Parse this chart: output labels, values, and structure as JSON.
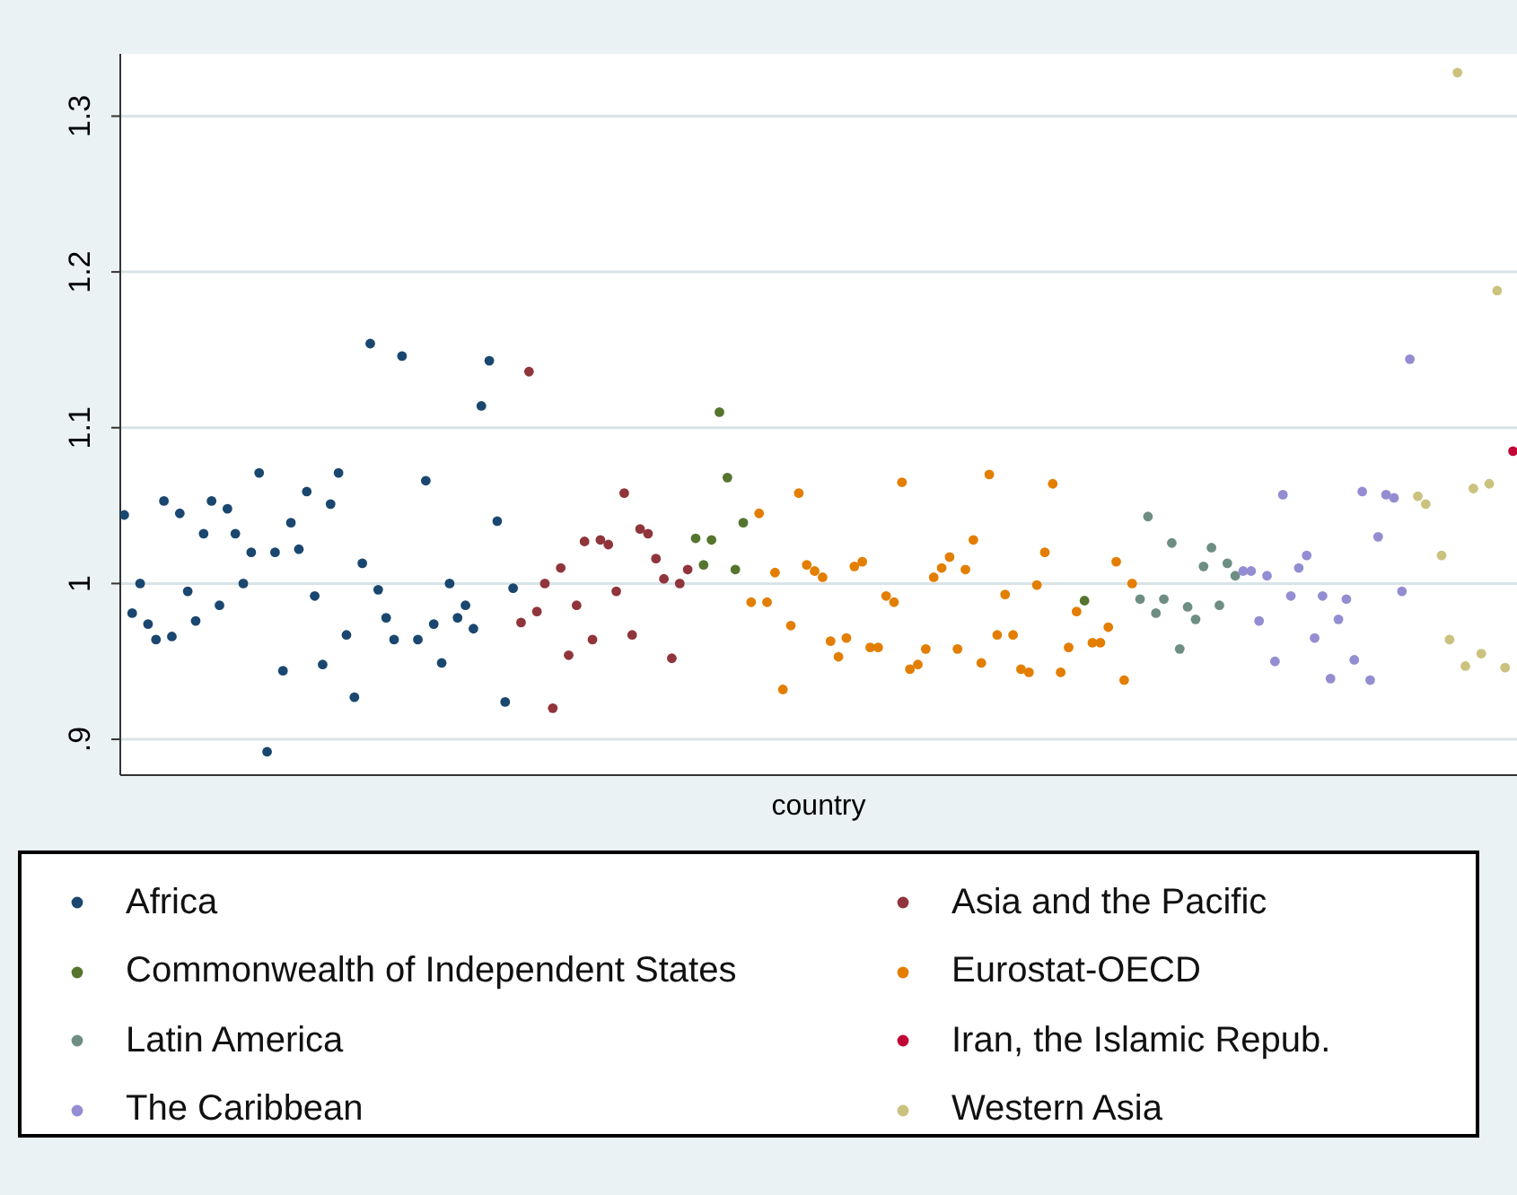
{
  "chart_data": {
    "type": "scatter",
    "xlabel": "country",
    "ylim": [
      0.877,
      1.34
    ],
    "yticks": [
      {
        "value": 0.9,
        "label": ".9"
      },
      1,
      1.1,
      1.2,
      1.3
    ],
    "grid": "y",
    "legend": "bottom",
    "marker": "circle",
    "categories": [
      null,
      null,
      null,
      null,
      null,
      null,
      null,
      null,
      null,
      null,
      null,
      null,
      null,
      null,
      null,
      null,
      null,
      null,
      null,
      null,
      null,
      null,
      null,
      null,
      null,
      null,
      null,
      null,
      null,
      null,
      null,
      null,
      null,
      null,
      null,
      null,
      null,
      null,
      null,
      null,
      null,
      null,
      null,
      null,
      null,
      null,
      null,
      null,
      null,
      null,
      null,
      null,
      null,
      null,
      null,
      null,
      null,
      null,
      null,
      null,
      null,
      null,
      null,
      null,
      null,
      null,
      null,
      null,
      null,
      null,
      null,
      null,
      null,
      null,
      null,
      null,
      null,
      null,
      null,
      null,
      null,
      null,
      null,
      null,
      null,
      null,
      null,
      null,
      null,
      null,
      null,
      null,
      null,
      null,
      null,
      null,
      null,
      null,
      null,
      null,
      null,
      null,
      null,
      null,
      null,
      null,
      null,
      null,
      null,
      null,
      null,
      null,
      null,
      null,
      null,
      null,
      null,
      null,
      null,
      null,
      null,
      null,
      null,
      null,
      null,
      null,
      null,
      null,
      null,
      null,
      null,
      null,
      null,
      null,
      null,
      null,
      null,
      null,
      null,
      null,
      null,
      null,
      null,
      null,
      null,
      null,
      null,
      null,
      null,
      null,
      null,
      null,
      null,
      null,
      null,
      null,
      null,
      null,
      null,
      null,
      null,
      null,
      null,
      null,
      null,
      null,
      null,
      null,
      null,
      null,
      null,
      null,
      null,
      null,
      null,
      null
    ],
    "series": [
      {
        "name": "Africa",
        "color": "#1a476f",
        "values": [
          1.044,
          0.981,
          1.0,
          0.974,
          0.964,
          1.053,
          0.966,
          1.045,
          0.995,
          0.976,
          1.032,
          1.053,
          0.986,
          1.048,
          1.032,
          1.0,
          1.02,
          1.071,
          0.892,
          1.02,
          0.944,
          1.039,
          1.022,
          1.059,
          0.992,
          0.948,
          1.051,
          1.071,
          0.967,
          0.927,
          1.013,
          1.154,
          0.996,
          0.978,
          0.964,
          1.146,
          null,
          0.964,
          1.066,
          0.974,
          0.949,
          1.0,
          0.978,
          0.986,
          0.971,
          1.114,
          1.143,
          1.04,
          0.924,
          0.997,
          null,
          null,
          null,
          null,
          null,
          null,
          null,
          null,
          null,
          null,
          null,
          null,
          null,
          null,
          null,
          null,
          null,
          null,
          null,
          null,
          null,
          null,
          null,
          null,
          null,
          null,
          null,
          null,
          null,
          null,
          null,
          null,
          null,
          null,
          null,
          null,
          null,
          null,
          null,
          null,
          null,
          null,
          null,
          null,
          null,
          null,
          null,
          null,
          null,
          null,
          null,
          null,
          null,
          null,
          null,
          null,
          null,
          null,
          null,
          null,
          null,
          null,
          null,
          null,
          null,
          null,
          null,
          null,
          null,
          null,
          null,
          null,
          null,
          null,
          null,
          null,
          null,
          null,
          null,
          null,
          null,
          null,
          null,
          null,
          null,
          null,
          null,
          null,
          null,
          null,
          null,
          null,
          null,
          null,
          null,
          null,
          null,
          null,
          null,
          null,
          null,
          null,
          null,
          null,
          null,
          null,
          null,
          null,
          null,
          null,
          null,
          null,
          null,
          null,
          null,
          null,
          null,
          null,
          null,
          null,
          null,
          null,
          null,
          null,
          null,
          null
        ]
      },
      {
        "name": "Asia and the Pacific",
        "color": "#90353b",
        "values": [
          null,
          null,
          null,
          null,
          null,
          null,
          null,
          null,
          null,
          null,
          null,
          null,
          null,
          null,
          null,
          null,
          null,
          null,
          null,
          null,
          null,
          null,
          null,
          null,
          null,
          null,
          null,
          null,
          null,
          null,
          null,
          null,
          null,
          null,
          null,
          null,
          null,
          null,
          null,
          null,
          null,
          null,
          null,
          null,
          null,
          null,
          null,
          null,
          null,
          null,
          0.975,
          1.136,
          0.982,
          1.0,
          0.92,
          1.01,
          0.954,
          0.986,
          1.027,
          0.964,
          1.028,
          1.025,
          0.995,
          1.058,
          0.967,
          1.035,
          1.032,
          1.016,
          1.003,
          0.952,
          1.0,
          1.009,
          null,
          null,
          null,
          null,
          null,
          null,
          null,
          null,
          null,
          null,
          null,
          null,
          null,
          null,
          null,
          null,
          null,
          null,
          null,
          null,
          null,
          null,
          null,
          null,
          null,
          null,
          null,
          null,
          null,
          null,
          null,
          null,
          null,
          null,
          null,
          null,
          null,
          null,
          null,
          null,
          null,
          null,
          null,
          null,
          null,
          null,
          null,
          null,
          null,
          null,
          null,
          null,
          null,
          null,
          null,
          null,
          null,
          null,
          null,
          null,
          null,
          null,
          null,
          null,
          null,
          null,
          null,
          null,
          null,
          null,
          null,
          null,
          null,
          null,
          null,
          null,
          null,
          null,
          null,
          null,
          null,
          null,
          null,
          null,
          null,
          null,
          null,
          null,
          null,
          null,
          null,
          null,
          null,
          null,
          null,
          null,
          null,
          null,
          null,
          null,
          null,
          null,
          null,
          null
        ]
      },
      {
        "name": "Commonwealth of Independent States",
        "color": "#55752f",
        "values": [
          null,
          null,
          null,
          null,
          null,
          null,
          null,
          null,
          null,
          null,
          null,
          null,
          null,
          null,
          null,
          null,
          null,
          null,
          null,
          null,
          null,
          null,
          null,
          null,
          null,
          null,
          null,
          null,
          null,
          null,
          null,
          null,
          null,
          null,
          null,
          null,
          null,
          null,
          null,
          null,
          null,
          null,
          null,
          null,
          null,
          null,
          null,
          null,
          null,
          null,
          null,
          null,
          null,
          null,
          null,
          null,
          null,
          null,
          null,
          null,
          null,
          null,
          null,
          null,
          null,
          null,
          null,
          null,
          null,
          null,
          null,
          null,
          1.029,
          1.012,
          1.028,
          1.11,
          1.068,
          1.009,
          1.039,
          null,
          null,
          null,
          null,
          null,
          null,
          null,
          null,
          null,
          null,
          null,
          null,
          null,
          null,
          null,
          null,
          null,
          null,
          null,
          null,
          null,
          null,
          null,
          null,
          null,
          null,
          null,
          null,
          null,
          null,
          null,
          null,
          null,
          null,
          null,
          null,
          null,
          null,
          null,
          null,
          null,
          null,
          0.989,
          null,
          null,
          null,
          null,
          null,
          null,
          null,
          null,
          null,
          null,
          null,
          null,
          null,
          null,
          null,
          null,
          null,
          null,
          null,
          null,
          null,
          null,
          null,
          null,
          null,
          null,
          null,
          null,
          null,
          null,
          null,
          null,
          null,
          null,
          null,
          null,
          null,
          null,
          null,
          null,
          null,
          null,
          null,
          null,
          null,
          null,
          null,
          null,
          null,
          null,
          null,
          null,
          null,
          null
        ]
      },
      {
        "name": "Eurostat-OECD",
        "color": "#e37e00",
        "values": [
          null,
          null,
          null,
          null,
          null,
          null,
          null,
          null,
          null,
          null,
          null,
          null,
          null,
          null,
          null,
          null,
          null,
          null,
          null,
          null,
          null,
          null,
          null,
          null,
          null,
          null,
          null,
          null,
          null,
          null,
          null,
          null,
          null,
          null,
          null,
          null,
          null,
          null,
          null,
          null,
          null,
          null,
          null,
          null,
          null,
          null,
          null,
          null,
          null,
          null,
          null,
          null,
          null,
          null,
          null,
          null,
          null,
          null,
          null,
          null,
          null,
          null,
          null,
          null,
          null,
          null,
          null,
          null,
          null,
          null,
          null,
          null,
          null,
          null,
          null,
          null,
          null,
          null,
          null,
          0.988,
          1.045,
          0.988,
          1.007,
          0.932,
          0.973,
          1.058,
          1.012,
          1.008,
          1.004,
          0.963,
          0.953,
          0.965,
          1.011,
          1.014,
          0.959,
          0.959,
          0.992,
          0.988,
          1.065,
          0.945,
          0.948,
          0.958,
          1.004,
          1.01,
          1.017,
          0.958,
          1.009,
          1.028,
          0.949,
          1.07,
          0.967,
          0.993,
          0.967,
          0.945,
          0.943,
          0.999,
          1.02,
          1.064,
          0.943,
          0.959,
          0.982,
          null,
          0.962,
          0.962,
          0.972,
          1.014,
          0.938,
          1.0,
          null,
          null,
          null,
          null,
          null,
          null,
          null,
          null,
          null,
          null,
          null,
          null,
          null,
          null,
          null,
          null,
          null,
          null,
          null,
          null,
          null,
          null,
          null,
          null,
          null,
          null,
          null,
          null,
          null,
          null,
          null,
          null,
          null,
          null,
          null,
          null,
          null,
          null,
          null,
          null,
          null,
          null,
          null,
          null,
          null,
          null,
          null,
          null
        ]
      },
      {
        "name": "Latin America",
        "color": "#6e8e84",
        "values": [
          null,
          null,
          null,
          null,
          null,
          null,
          null,
          null,
          null,
          null,
          null,
          null,
          null,
          null,
          null,
          null,
          null,
          null,
          null,
          null,
          null,
          null,
          null,
          null,
          null,
          null,
          null,
          null,
          null,
          null,
          null,
          null,
          null,
          null,
          null,
          null,
          null,
          null,
          null,
          null,
          null,
          null,
          null,
          null,
          null,
          null,
          null,
          null,
          null,
          null,
          null,
          null,
          null,
          null,
          null,
          null,
          null,
          null,
          null,
          null,
          null,
          null,
          null,
          null,
          null,
          null,
          null,
          null,
          null,
          null,
          null,
          null,
          null,
          null,
          null,
          null,
          null,
          null,
          null,
          null,
          null,
          null,
          null,
          null,
          null,
          null,
          null,
          null,
          null,
          null,
          null,
          null,
          null,
          null,
          null,
          null,
          null,
          null,
          null,
          null,
          null,
          null,
          null,
          null,
          null,
          null,
          null,
          null,
          null,
          null,
          null,
          null,
          null,
          null,
          null,
          null,
          null,
          null,
          null,
          null,
          null,
          null,
          null,
          null,
          null,
          null,
          null,
          null,
          0.99,
          1.043,
          0.981,
          0.99,
          1.026,
          0.958,
          0.985,
          0.977,
          1.011,
          1.023,
          0.986,
          1.013,
          1.005,
          null,
          null,
          null,
          null,
          null,
          null,
          null,
          null,
          null,
          null,
          null,
          null,
          null,
          null,
          null,
          null,
          null,
          null,
          null,
          null,
          null,
          null,
          null,
          null,
          null,
          null,
          null,
          null,
          null,
          null,
          null,
          null,
          null,
          null,
          null
        ]
      },
      {
        "name": "Iran, the Islamic Repub.",
        "color": "#c10534",
        "values": [
          null,
          null,
          null,
          null,
          null,
          null,
          null,
          null,
          null,
          null,
          null,
          null,
          null,
          null,
          null,
          null,
          null,
          null,
          null,
          null,
          null,
          null,
          null,
          null,
          null,
          null,
          null,
          null,
          null,
          null,
          null,
          null,
          null,
          null,
          null,
          null,
          null,
          null,
          null,
          null,
          null,
          null,
          null,
          null,
          null,
          null,
          null,
          null,
          null,
          null,
          null,
          null,
          null,
          null,
          null,
          null,
          null,
          null,
          null,
          null,
          null,
          null,
          null,
          null,
          null,
          null,
          null,
          null,
          null,
          null,
          null,
          null,
          null,
          null,
          null,
          null,
          null,
          null,
          null,
          null,
          null,
          null,
          null,
          null,
          null,
          null,
          null,
          null,
          null,
          null,
          null,
          null,
          null,
          null,
          null,
          null,
          null,
          null,
          null,
          null,
          null,
          null,
          null,
          null,
          null,
          null,
          null,
          null,
          null,
          null,
          null,
          null,
          null,
          null,
          null,
          null,
          null,
          null,
          null,
          null,
          null,
          null,
          null,
          null,
          null,
          null,
          null,
          null,
          null,
          null,
          null,
          null,
          null,
          null,
          null,
          null,
          null,
          null,
          null,
          null,
          null,
          null,
          null,
          null,
          null,
          null,
          null,
          null,
          null,
          null,
          null,
          null,
          null,
          null,
          null,
          null,
          null,
          null,
          null,
          null,
          null,
          null,
          null,
          null,
          null,
          null,
          null,
          null,
          null,
          null,
          null,
          null,
          null,
          null,
          null,
          1.085
        ]
      },
      {
        "name": "The Caribbean",
        "color": "#938dd2",
        "values": [
          null,
          null,
          null,
          null,
          null,
          null,
          null,
          null,
          null,
          null,
          null,
          null,
          null,
          null,
          null,
          null,
          null,
          null,
          null,
          null,
          null,
          null,
          null,
          null,
          null,
          null,
          null,
          null,
          null,
          null,
          null,
          null,
          null,
          null,
          null,
          null,
          null,
          null,
          null,
          null,
          null,
          null,
          null,
          null,
          null,
          null,
          null,
          null,
          null,
          null,
          null,
          null,
          null,
          null,
          null,
          null,
          null,
          null,
          null,
          null,
          null,
          null,
          null,
          null,
          null,
          null,
          null,
          null,
          null,
          null,
          null,
          null,
          null,
          null,
          null,
          null,
          null,
          null,
          null,
          null,
          null,
          null,
          null,
          null,
          null,
          null,
          null,
          null,
          null,
          null,
          null,
          null,
          null,
          null,
          null,
          null,
          null,
          null,
          null,
          null,
          null,
          null,
          null,
          null,
          null,
          null,
          null,
          null,
          null,
          null,
          null,
          null,
          null,
          null,
          null,
          null,
          null,
          null,
          null,
          null,
          null,
          null,
          null,
          null,
          null,
          null,
          null,
          null,
          null,
          null,
          null,
          null,
          null,
          null,
          null,
          null,
          null,
          null,
          null,
          null,
          null,
          1.008,
          1.008,
          0.976,
          1.005,
          0.95,
          1.057,
          0.992,
          1.01,
          1.018,
          0.965,
          0.992,
          0.939,
          0.977,
          0.99,
          0.951,
          1.059,
          0.938,
          1.03,
          1.057,
          1.055,
          0.995,
          1.144,
          null,
          null,
          null,
          null,
          null,
          null,
          null,
          null,
          null,
          null,
          null,
          null,
          null
        ]
      },
      {
        "name": "Western Asia",
        "color": "#cac27e",
        "values": [
          null,
          null,
          null,
          null,
          null,
          null,
          null,
          null,
          null,
          null,
          null,
          null,
          null,
          null,
          null,
          null,
          null,
          null,
          null,
          null,
          null,
          null,
          null,
          null,
          null,
          null,
          null,
          null,
          null,
          null,
          null,
          null,
          null,
          null,
          null,
          null,
          null,
          null,
          null,
          null,
          null,
          null,
          null,
          null,
          null,
          null,
          null,
          null,
          null,
          null,
          null,
          null,
          null,
          null,
          null,
          null,
          null,
          null,
          null,
          null,
          null,
          null,
          null,
          null,
          null,
          null,
          null,
          null,
          null,
          null,
          null,
          null,
          null,
          null,
          null,
          null,
          null,
          null,
          null,
          null,
          null,
          null,
          null,
          null,
          null,
          null,
          null,
          null,
          null,
          null,
          null,
          null,
          null,
          null,
          null,
          null,
          null,
          null,
          null,
          null,
          null,
          null,
          null,
          null,
          null,
          null,
          null,
          null,
          null,
          null,
          null,
          null,
          null,
          null,
          null,
          null,
          null,
          null,
          null,
          null,
          null,
          null,
          null,
          null,
          null,
          null,
          null,
          null,
          null,
          null,
          null,
          null,
          null,
          null,
          null,
          null,
          null,
          null,
          null,
          null,
          null,
          null,
          null,
          null,
          null,
          null,
          null,
          null,
          null,
          null,
          null,
          null,
          null,
          null,
          null,
          null,
          null,
          null,
          null,
          null,
          null,
          null,
          null,
          1.056,
          1.051,
          null,
          1.018,
          0.964,
          1.328,
          0.947,
          1.061,
          0.955,
          1.064,
          1.188,
          0.946,
          null
        ]
      }
    ]
  }
}
